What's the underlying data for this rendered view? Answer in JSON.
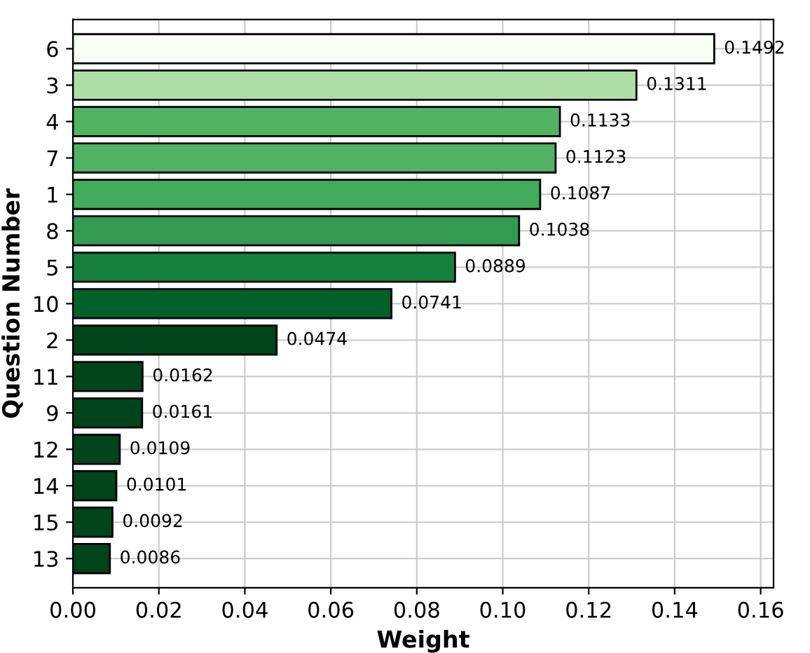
{
  "chart_data": {
    "type": "bar",
    "orientation": "horizontal",
    "xlabel": "Weight",
    "ylabel": "Question Number",
    "categories": [
      "6",
      "3",
      "4",
      "7",
      "1",
      "8",
      "5",
      "10",
      "2",
      "11",
      "9",
      "12",
      "14",
      "15",
      "13"
    ],
    "values": [
      0.1492,
      0.1311,
      0.1133,
      0.1123,
      0.1087,
      0.1038,
      0.0889,
      0.0741,
      0.0474,
      0.0162,
      0.0161,
      0.0109,
      0.0101,
      0.0092,
      0.0086
    ],
    "colors": [
      "#f7fcf5",
      "#addea6",
      "#52b365",
      "#50b264",
      "#40aa5d",
      "#329b51",
      "#167f3c",
      "#00602a",
      "#00441b",
      "#00441b",
      "#00441b",
      "#00441b",
      "#00441b",
      "#00441b",
      "#00441b"
    ],
    "xlim": [
      0,
      0.163
    ],
    "xticks": [
      {
        "value": 0,
        "label": "0.00"
      },
      {
        "value": 0.02,
        "label": "0.02"
      },
      {
        "value": 0.04,
        "label": "0.04"
      },
      {
        "value": 0.06,
        "label": "0.06"
      },
      {
        "value": 0.08,
        "label": "0.08"
      },
      {
        "value": 0.1,
        "label": "0.10"
      },
      {
        "value": 0.12,
        "label": "0.12"
      },
      {
        "value": 0.14,
        "label": "0.14"
      },
      {
        "value": 0.16,
        "label": "0.16"
      }
    ],
    "grid": true,
    "data_labels": true
  }
}
